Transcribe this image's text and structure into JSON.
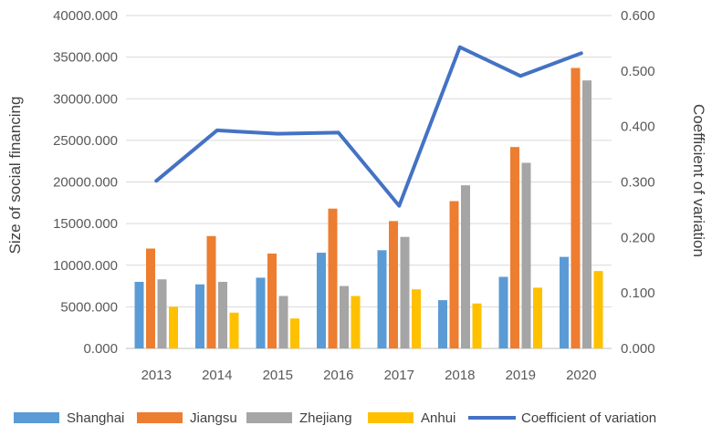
{
  "chart_data": {
    "type": "bar",
    "categories": [
      "2013",
      "2014",
      "2015",
      "2016",
      "2017",
      "2018",
      "2019",
      "2020"
    ],
    "series": [
      {
        "name": "Shanghai",
        "color": "#5B9BD5",
        "axis": "left",
        "values": [
          8000,
          7700,
          8500,
          11500,
          11800,
          5800,
          8600,
          11000
        ]
      },
      {
        "name": "Jiangsu",
        "color": "#ED7D31",
        "axis": "left",
        "values": [
          12000,
          13500,
          11400,
          16800,
          15300,
          17700,
          24200,
          33700
        ]
      },
      {
        "name": "Zhejiang",
        "color": "#A5A5A5",
        "axis": "left",
        "values": [
          8300,
          8000,
          6300,
          7500,
          13400,
          19600,
          22300,
          32200
        ]
      },
      {
        "name": "Anhui",
        "color": "#FFC000",
        "axis": "left",
        "values": [
          5000,
          4300,
          3600,
          6300,
          7100,
          5400,
          7300,
          9300
        ]
      }
    ],
    "line_series": {
      "name": "Coefficient of variation",
      "color": "#4472C4",
      "axis": "right",
      "values": [
        0.302,
        0.393,
        0.387,
        0.389,
        0.257,
        0.543,
        0.491,
        0.532
      ]
    },
    "ylabel": "Size of social financing",
    "y2label": "Coefficient of variation",
    "ylim": [
      0,
      40000
    ],
    "y2lim": [
      0,
      0.6
    ],
    "yticks": [
      "0.000",
      "5000.000",
      "10000.000",
      "15000.000",
      "20000.000",
      "25000.000",
      "30000.000",
      "35000.000",
      "40000.000"
    ],
    "y2ticks": [
      "0.000",
      "0.100",
      "0.200",
      "0.300",
      "0.400",
      "0.500",
      "0.600"
    ],
    "grid": true,
    "legend_position": "bottom"
  }
}
